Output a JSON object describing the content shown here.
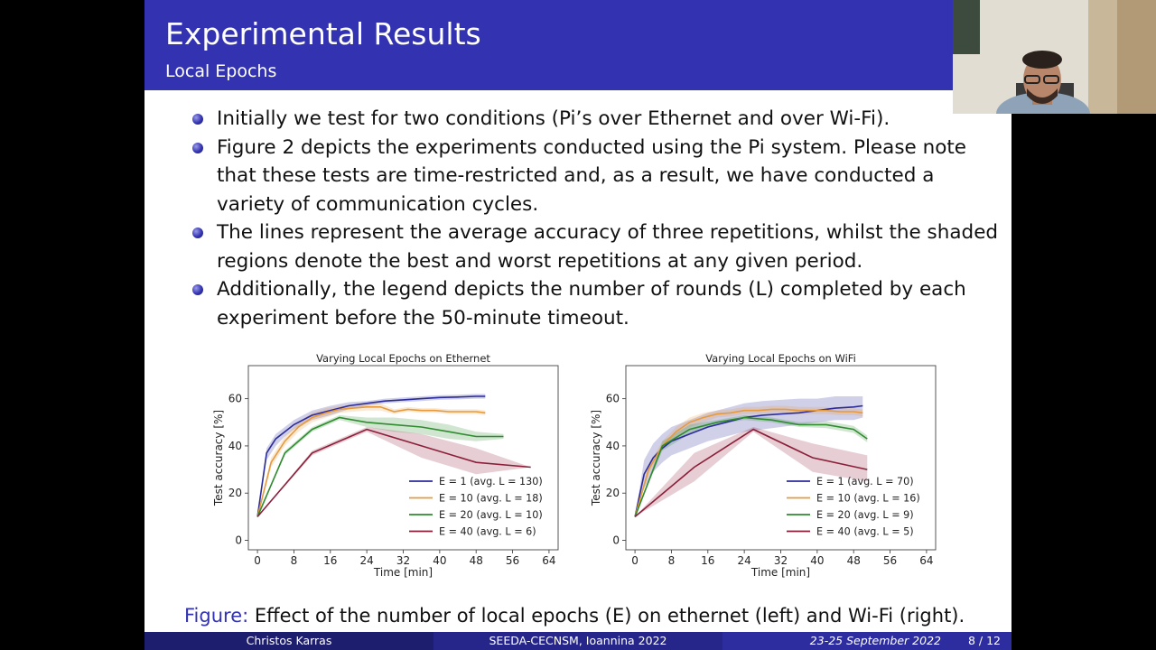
{
  "header": {
    "title": "Experimental Results",
    "subtitle": "Local Epochs"
  },
  "bullets": [
    "Initially we test for two conditions (Pi’s over Ethernet and over Wi-Fi).",
    "Figure 2 depicts the experiments conducted using the Pi system. Please note that these tests are time-restricted and, as a result, we have conducted a variety of communication cycles.",
    "The lines represent the average accuracy of three repetitions, whilst the shaded regions denote the best and worst repetitions at any given period.",
    "Additionally, the legend depicts the number of rounds (L) completed by each experiment before the 50-minute timeout."
  ],
  "caption": {
    "label": "Figure:",
    "text": "Effect of the number of local epochs (E) on ethernet (left) and Wi-Fi (right)."
  },
  "footer": {
    "author": "Christos Karras",
    "event": "SEEDA-CECNSM, Ioannina 2022",
    "date": "23-25 September 2022",
    "page": "8 / 12"
  },
  "colors": {
    "E1": "#2b2b9a",
    "E10": "#e69a3c",
    "E20": "#2e8b2e",
    "E40": "#8b1f3a"
  },
  "chart_data": [
    {
      "type": "line",
      "title": "Varying Local Epochs on Ethernet",
      "xlabel": "Time [min]",
      "ylabel": "Test accuracy [%]",
      "xlim": [
        -2,
        66
      ],
      "ylim": [
        -4,
        74
      ],
      "xticks": [
        0,
        8,
        16,
        24,
        32,
        40,
        48,
        56,
        64
      ],
      "yticks": [
        0,
        20,
        40,
        60
      ],
      "legend_position": "lower-right",
      "series": [
        {
          "key": "E1",
          "name": "E = 1 (avg. L = 130)",
          "x": [
            0,
            2,
            4,
            6,
            8,
            12,
            16,
            20,
            24,
            28,
            32,
            36,
            40,
            44,
            48,
            50
          ],
          "y": [
            10,
            37,
            43,
            46,
            49,
            53,
            55,
            57,
            58,
            59,
            59.5,
            60,
            60.5,
            60.7,
            61,
            61
          ],
          "lower": [
            10,
            34,
            40,
            44,
            47,
            51,
            53,
            55.5,
            57,
            58,
            58.5,
            59,
            59.5,
            59.7,
            60,
            60
          ],
          "upper": [
            10,
            39,
            45,
            48,
            51,
            55,
            57,
            58.5,
            59,
            60,
            60.5,
            61,
            61.5,
            61.7,
            62,
            62
          ]
        },
        {
          "key": "E10",
          "name": "E = 10 (avg. L = 18)",
          "x": [
            0,
            3,
            6,
            9,
            12,
            15,
            18,
            21,
            24,
            27,
            30,
            33,
            36,
            39,
            42,
            45,
            48,
            50
          ],
          "y": [
            10,
            33,
            42,
            48,
            52,
            54,
            55.5,
            56,
            56.5,
            56.5,
            54.5,
            55.5,
            55,
            55,
            54.5,
            54.5,
            54.5,
            54
          ],
          "lower": [
            10,
            31,
            40,
            46,
            50,
            52,
            54,
            54.5,
            55,
            55,
            53.5,
            54.5,
            54,
            54,
            53.5,
            53.5,
            53.5,
            53
          ],
          "upper": [
            10,
            35,
            44,
            50,
            54,
            56,
            57,
            57.5,
            58,
            58,
            55.5,
            56.5,
            56,
            56,
            55.5,
            55.5,
            55.5,
            55
          ]
        },
        {
          "key": "E20",
          "name": "E = 20 (avg. L = 10)",
          "x": [
            0,
            6,
            12,
            18,
            24,
            30,
            36,
            42,
            48,
            54
          ],
          "y": [
            10,
            37,
            47,
            52,
            50,
            49,
            48,
            46,
            44,
            44
          ],
          "lower": [
            10,
            36,
            46,
            51,
            48,
            46,
            45,
            43,
            42,
            43
          ],
          "upper": [
            10,
            38,
            48,
            53,
            52,
            52,
            51,
            49,
            46,
            45
          ]
        },
        {
          "key": "E40",
          "name": "E = 40 (avg. L = 6)",
          "x": [
            0,
            12,
            24,
            36,
            48,
            60
          ],
          "y": [
            10,
            37,
            47,
            40,
            33,
            31
          ],
          "lower": [
            10,
            36,
            46,
            35,
            28,
            31
          ],
          "upper": [
            10,
            38,
            48,
            45,
            39,
            31
          ]
        }
      ]
    },
    {
      "type": "line",
      "title": "Varying Local Epochs on WiFi",
      "xlabel": "Time [min]",
      "ylabel": "Test accuracy [%]",
      "xlim": [
        -2,
        66
      ],
      "ylim": [
        -4,
        74
      ],
      "xticks": [
        0,
        8,
        16,
        24,
        32,
        40,
        48,
        56,
        64
      ],
      "yticks": [
        0,
        20,
        40,
        60
      ],
      "legend_position": "lower-right",
      "series": [
        {
          "key": "E1",
          "name": "E = 1 (avg. L = 70)",
          "x": [
            0,
            2,
            4,
            6,
            8,
            12,
            16,
            20,
            24,
            28,
            32,
            36,
            40,
            44,
            48,
            50
          ],
          "y": [
            10,
            28,
            35,
            39,
            42,
            45,
            48,
            50,
            52,
            53,
            53.5,
            54,
            55,
            56,
            56.5,
            57
          ],
          "lower": [
            10,
            22,
            29,
            33,
            36,
            39,
            42,
            44,
            46,
            47,
            48,
            49,
            50,
            51,
            51,
            52
          ],
          "upper": [
            10,
            34,
            41,
            45,
            48,
            51,
            54,
            56,
            58,
            59,
            59.5,
            60,
            60,
            61,
            61,
            61
          ]
        },
        {
          "key": "E10",
          "name": "E = 10 (avg. L = 16)",
          "x": [
            0,
            3,
            6,
            9,
            12,
            15,
            18,
            21,
            24,
            27,
            30,
            33,
            36,
            39,
            42,
            45,
            48,
            50
          ],
          "y": [
            10,
            30,
            40,
            46,
            50,
            52,
            53.5,
            54,
            55,
            55,
            55.5,
            55.5,
            55,
            55,
            55,
            54.5,
            54.5,
            54
          ],
          "lower": [
            10,
            28,
            38,
            44,
            48,
            50,
            52,
            52.5,
            53.5,
            53.5,
            54,
            54,
            53.5,
            53.5,
            53.5,
            53,
            53,
            52.5
          ],
          "upper": [
            10,
            32,
            42,
            48,
            52,
            54,
            55,
            55.5,
            56.5,
            56.5,
            57,
            57,
            56.5,
            56.5,
            56.5,
            56,
            56,
            55.5
          ]
        },
        {
          "key": "E20",
          "name": "E = 20 (avg. L = 9)",
          "x": [
            0,
            6,
            12,
            18,
            24,
            30,
            36,
            42,
            48,
            51
          ],
          "y": [
            10,
            40,
            47,
            50,
            52,
            51,
            49,
            49,
            47,
            43
          ],
          "lower": [
            10,
            38,
            45,
            49,
            51,
            50,
            48,
            47.5,
            45.5,
            41.5
          ],
          "upper": [
            10,
            42,
            49,
            51,
            53,
            52,
            50,
            50.5,
            48.5,
            44.5
          ]
        },
        {
          "key": "E40",
          "name": "E = 40 (avg. L = 5)",
          "x": [
            0,
            13,
            26,
            39,
            51
          ],
          "y": [
            10,
            31,
            47,
            35,
            30
          ],
          "lower": [
            10,
            25,
            46,
            29,
            25
          ],
          "upper": [
            10,
            37,
            48,
            41,
            36
          ]
        }
      ]
    }
  ]
}
